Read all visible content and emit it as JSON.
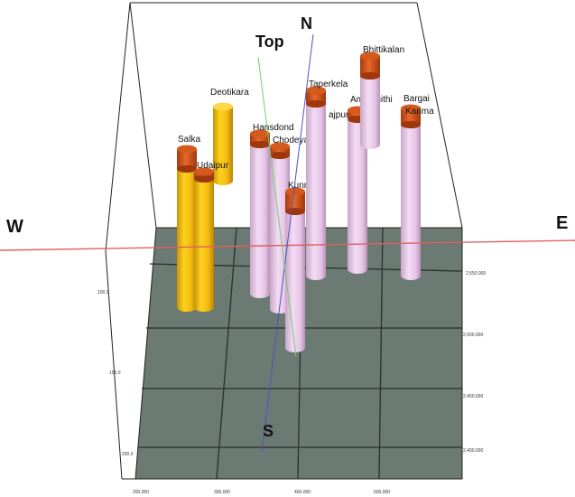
{
  "view": {
    "directions": {
      "north": "N",
      "south": "S",
      "east": "E",
      "west": "W",
      "top": "Top"
    },
    "colors": {
      "ground": "#6b7a72",
      "ground_grid": "#2b302d",
      "yellow_well": "#f2bb12",
      "pink_well": "#e6c4e6",
      "well_cap": "#d65a1e",
      "ew_axis": "#e06060",
      "ns_axis": "#5050c8",
      "top_axis": "#70d070",
      "frame": "#222222"
    }
  },
  "wells": [
    {
      "name": "Deotikara",
      "type": "yellow"
    },
    {
      "name": "Salka",
      "type": "yellow"
    },
    {
      "name": "Udaipur",
      "type": "yellow"
    },
    {
      "name": "Hansdond",
      "type": "pink"
    },
    {
      "name": "Chodeya",
      "type": "pink"
    },
    {
      "name": "Kunni",
      "type": "pink"
    },
    {
      "name": "Taperkela",
      "type": "pink"
    },
    {
      "name": "ajpur",
      "type": "pink"
    },
    {
      "name": "Amalbhithi",
      "type": "pink"
    },
    {
      "name": "Bhittikalan",
      "type": "pink"
    },
    {
      "name": "Bargai",
      "type": "pink"
    },
    {
      "name": "Karima",
      "type": "pink"
    }
  ],
  "axis_ticks": {
    "left": [
      "100.0",
      "150.0",
      "200.0"
    ],
    "right": [
      "2,550.000",
      "2,500.000",
      "2,450.000",
      "2,400.000"
    ],
    "bottom": [
      "200.000",
      "300.000",
      "400.000",
      "500.000"
    ]
  }
}
